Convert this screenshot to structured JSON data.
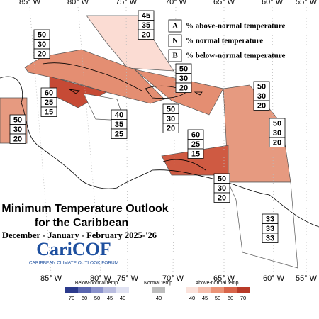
{
  "map": {
    "longitudes_top": [
      "85° W",
      "80° W",
      "75° W",
      "70° W",
      "65° W",
      "60° W",
      "55° W"
    ],
    "longitudes_bottom": [
      "85° W",
      "80° W",
      "75° W",
      "70° W",
      "65° W",
      "60° W",
      "55° W"
    ],
    "key": [
      {
        "letter": "A",
        "text": "% above-normal temperature"
      },
      {
        "letter": "N",
        "text": "% normal temperature"
      },
      {
        "letter": "B",
        "text": "% below-normal temperature"
      }
    ],
    "outlooks": [
      {
        "above": 45,
        "normal": 35,
        "below": 20
      },
      {
        "above": 50,
        "normal": 30,
        "below": 20
      },
      {
        "above": 50,
        "normal": 30,
        "below": 20
      },
      {
        "above": 50,
        "normal": 30,
        "below": 20
      },
      {
        "above": 60,
        "normal": 25,
        "below": 15
      },
      {
        "above": 40,
        "normal": 35,
        "below": 25
      },
      {
        "above": 50,
        "normal": 30,
        "below": 20
      },
      {
        "above": 50,
        "normal": 30,
        "below": 20
      },
      {
        "above": 50,
        "normal": 30,
        "below": 20
      },
      {
        "above": 60,
        "normal": 25,
        "below": 15
      },
      {
        "above": 50,
        "normal": 30,
        "below": 20
      },
      {
        "above": 33,
        "normal": 33,
        "below": 33
      }
    ],
    "title": [
      "Minimum Temperature Outlook",
      "for the Caribbean",
      "December - January - February 2025-'26"
    ],
    "logo": {
      "name": "CariCOF",
      "tagline": "CARIBBEAN CLIMATE OUTLOOK FORUM"
    },
    "colorbar": {
      "below": {
        "label": "Below-normal temp.",
        "ticks": [
          70,
          60,
          50,
          45,
          40
        ]
      },
      "normal": {
        "label": "Normal temp.",
        "ticks": [
          40
        ]
      },
      "above": {
        "label": "Above-normal temp.",
        "ticks": [
          40,
          45,
          50,
          60,
          70
        ]
      }
    }
  }
}
